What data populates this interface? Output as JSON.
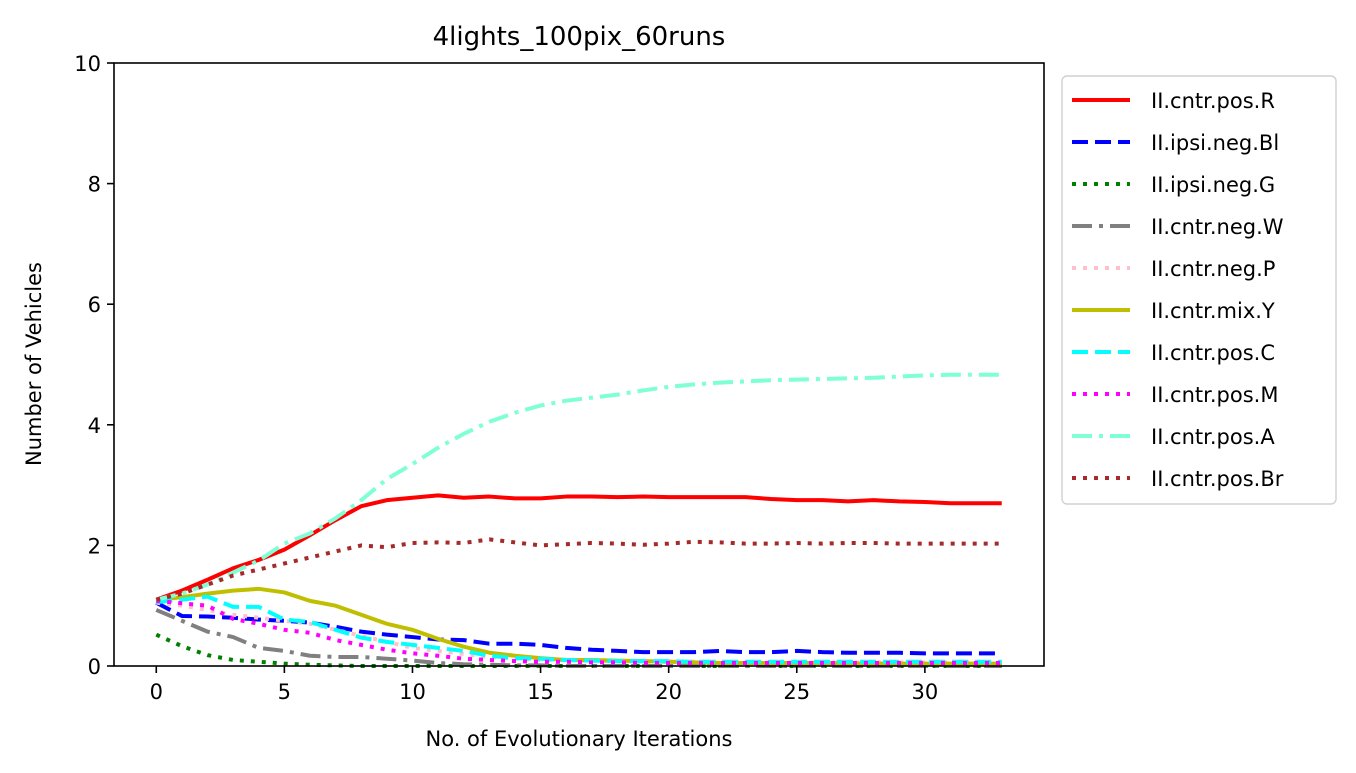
{
  "chart_data": {
    "type": "line",
    "title": "4lights_100pix_60runs",
    "xlabel": "No. of Evolutionary Iterations",
    "ylabel": "Number of Vehicles",
    "xlim": [
      -1.65,
      34.65
    ],
    "ylim": [
      0,
      10
    ],
    "xticks": [
      0,
      5,
      10,
      15,
      20,
      25,
      30
    ],
    "yticks": [
      0,
      2,
      4,
      6,
      8,
      10
    ],
    "grid": false,
    "legend_position": "outside-right",
    "x": [
      0,
      1,
      2,
      3,
      4,
      5,
      6,
      7,
      8,
      9,
      10,
      11,
      12,
      13,
      14,
      15,
      16,
      17,
      18,
      19,
      20,
      21,
      22,
      23,
      24,
      25,
      26,
      27,
      28,
      29,
      30,
      31,
      32,
      33
    ],
    "series": [
      {
        "name": "II.cntr.pos.R",
        "color": "#ff0000",
        "style": "solid",
        "values": [
          1.1,
          1.25,
          1.43,
          1.62,
          1.76,
          1.93,
          2.17,
          2.42,
          2.65,
          2.75,
          2.79,
          2.83,
          2.79,
          2.81,
          2.78,
          2.78,
          2.81,
          2.81,
          2.8,
          2.81,
          2.8,
          2.8,
          2.8,
          2.8,
          2.77,
          2.75,
          2.75,
          2.73,
          2.75,
          2.73,
          2.72,
          2.7,
          2.7,
          2.7
        ]
      },
      {
        "name": "II.ipsi.neg.Bl",
        "color": "#0000ff",
        "style": "dashed",
        "values": [
          1.05,
          0.83,
          0.82,
          0.8,
          0.77,
          0.75,
          0.72,
          0.65,
          0.57,
          0.52,
          0.48,
          0.44,
          0.43,
          0.37,
          0.37,
          0.35,
          0.3,
          0.27,
          0.25,
          0.23,
          0.23,
          0.23,
          0.25,
          0.23,
          0.23,
          0.25,
          0.23,
          0.22,
          0.22,
          0.22,
          0.21,
          0.21,
          0.21,
          0.21
        ]
      },
      {
        "name": "II.ipsi.neg.G",
        "color": "#008000",
        "style": "dotted",
        "values": [
          0.52,
          0.33,
          0.18,
          0.1,
          0.07,
          0.04,
          0.02,
          0.01,
          0,
          0,
          0,
          0,
          0,
          0,
          0,
          0,
          0,
          0,
          0,
          0,
          0,
          0,
          0,
          0,
          0,
          0,
          0,
          0,
          0,
          0,
          0,
          0,
          0,
          0
        ]
      },
      {
        "name": "II.cntr.neg.W",
        "color": "#808080",
        "style": "dashdot",
        "values": [
          0.93,
          0.75,
          0.57,
          0.48,
          0.3,
          0.25,
          0.17,
          0.15,
          0.15,
          0.12,
          0.09,
          0.05,
          0.03,
          0.02,
          0.01,
          0.01,
          0,
          0,
          0,
          0,
          0,
          0,
          0,
          0,
          0,
          0,
          0,
          0,
          0,
          0,
          0,
          0,
          0,
          0
        ]
      },
      {
        "name": "II.cntr.neg.P",
        "color": "#ffc0cb",
        "style": "dotted",
        "values": [
          1.05,
          1.0,
          0.93,
          0.85,
          0.8,
          0.75,
          0.7,
          0.6,
          0.5,
          0.4,
          0.3,
          0.25,
          0.2,
          0.15,
          0.12,
          0.1,
          0.1,
          0.08,
          0.08,
          0.07,
          0.07,
          0.07,
          0.07,
          0.06,
          0.06,
          0.06,
          0.06,
          0.06,
          0.06,
          0.06,
          0.06,
          0.06,
          0.06,
          0.06
        ]
      },
      {
        "name": "II.cntr.mix.Y",
        "color": "#bfbf00",
        "style": "solid",
        "values": [
          1.1,
          1.14,
          1.2,
          1.25,
          1.28,
          1.22,
          1.08,
          1.0,
          0.85,
          0.7,
          0.6,
          0.45,
          0.32,
          0.22,
          0.17,
          0.13,
          0.1,
          0.1,
          0.09,
          0.08,
          0.07,
          0.06,
          0.05,
          0.05,
          0.05,
          0.05,
          0.05,
          0.04,
          0.04,
          0.04,
          0.04,
          0.04,
          0.04,
          0.04
        ]
      },
      {
        "name": "II.cntr.pos.C",
        "color": "#00ffff",
        "style": "dashed",
        "values": [
          1.06,
          1.1,
          1.15,
          0.98,
          0.98,
          0.77,
          0.73,
          0.6,
          0.47,
          0.4,
          0.35,
          0.3,
          0.25,
          0.17,
          0.13,
          0.12,
          0.1,
          0.09,
          0.08,
          0.08,
          0.08,
          0.07,
          0.07,
          0.07,
          0.07,
          0.07,
          0.07,
          0.07,
          0.07,
          0.07,
          0.07,
          0.07,
          0.07,
          0.07
        ]
      },
      {
        "name": "II.cntr.pos.M",
        "color": "#ff00ff",
        "style": "dotted",
        "values": [
          1.08,
          1.04,
          1.0,
          0.78,
          0.7,
          0.6,
          0.55,
          0.43,
          0.35,
          0.27,
          0.21,
          0.17,
          0.12,
          0.1,
          0.08,
          0.07,
          0.07,
          0.06,
          0.06,
          0.05,
          0.05,
          0.05,
          0.05,
          0.05,
          0.05,
          0.05,
          0.05,
          0.05,
          0.05,
          0.05,
          0.05,
          0.05,
          0.05,
          0.05
        ]
      },
      {
        "name": "II.cntr.pos.A",
        "color": "#7fffd4",
        "style": "dashdot",
        "values": [
          1.1,
          1.2,
          1.35,
          1.55,
          1.75,
          2.03,
          2.2,
          2.45,
          2.75,
          3.1,
          3.35,
          3.62,
          3.85,
          4.05,
          4.2,
          4.32,
          4.4,
          4.45,
          4.5,
          4.57,
          4.63,
          4.67,
          4.7,
          4.72,
          4.74,
          4.75,
          4.76,
          4.77,
          4.78,
          4.8,
          4.82,
          4.83,
          4.83,
          4.83
        ]
      },
      {
        "name": "II.cntr.pos.Br",
        "color": "#a52a2a",
        "style": "dotted",
        "values": [
          1.1,
          1.2,
          1.35,
          1.5,
          1.6,
          1.7,
          1.8,
          1.9,
          2.0,
          1.97,
          2.04,
          2.05,
          2.04,
          2.1,
          2.05,
          2.0,
          2.02,
          2.04,
          2.03,
          2.01,
          2.03,
          2.06,
          2.05,
          2.03,
          2.03,
          2.04,
          2.03,
          2.04,
          2.04,
          2.03,
          2.03,
          2.03,
          2.03,
          2.03
        ]
      }
    ]
  }
}
